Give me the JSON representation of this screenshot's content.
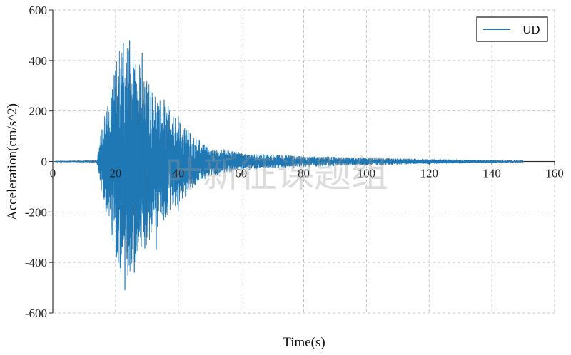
{
  "chart_data": {
    "type": "line",
    "title": "",
    "xlabel": "Time(s)",
    "ylabel": "Acceleration(cm/s^2)",
    "xlim": [
      0,
      160
    ],
    "ylim": [
      -600,
      600
    ],
    "xticks": [
      0,
      20,
      40,
      60,
      80,
      100,
      120,
      140,
      160
    ],
    "yticks": [
      -600,
      -400,
      -200,
      0,
      200,
      400,
      600
    ],
    "grid": true,
    "legend_position": "top-right",
    "series": [
      {
        "name": "UD",
        "color": "#1f77b4",
        "duration": 150,
        "envelope": [
          {
            "t": 0,
            "amp": 0
          },
          {
            "t": 14,
            "amp": 5
          },
          {
            "t": 15,
            "amp": 90
          },
          {
            "t": 17,
            "amp": 210
          },
          {
            "t": 19,
            "amp": 330
          },
          {
            "t": 21,
            "amp": 440
          },
          {
            "t": 24,
            "amp": 480
          },
          {
            "t": 27,
            "amp": 400
          },
          {
            "t": 30,
            "amp": 330
          },
          {
            "t": 35,
            "amp": 250
          },
          {
            "t": 40,
            "amp": 180
          },
          {
            "t": 45,
            "amp": 100
          },
          {
            "t": 50,
            "amp": 60
          },
          {
            "t": 60,
            "amp": 35
          },
          {
            "t": 80,
            "amp": 22
          },
          {
            "t": 100,
            "amp": 15
          },
          {
            "t": 120,
            "amp": 10
          },
          {
            "t": 150,
            "amp": 4
          }
        ],
        "peaks": [
          {
            "t": 22.5,
            "value": 470
          },
          {
            "t": 24.5,
            "value": 480
          },
          {
            "t": 23.0,
            "value": -510
          },
          {
            "t": 26.0,
            "value": -440
          },
          {
            "t": 28.5,
            "value": 430
          },
          {
            "t": 20.0,
            "value": 360
          },
          {
            "t": 21.5,
            "value": -400
          },
          {
            "t": 33.0,
            "value": -350
          },
          {
            "t": 35.5,
            "value": 245
          },
          {
            "t": 40.0,
            "value": -195
          }
        ]
      }
    ]
  },
  "watermark": "叶新征课题组",
  "colors": {
    "series": "#1f77b4",
    "grid": "#c8c8c8",
    "axis": "#333333"
  }
}
